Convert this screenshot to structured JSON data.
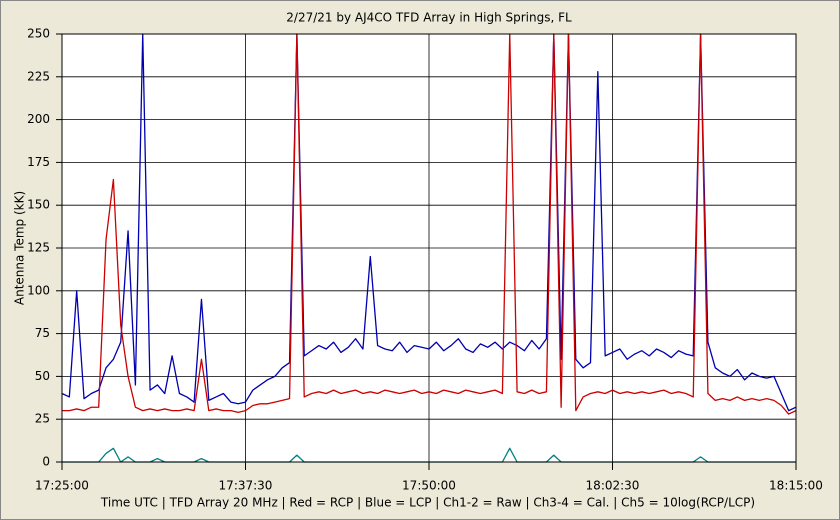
{
  "chart_data": {
    "type": "line",
    "title": "2/27/21  by  AJ4CO TFD Array  in  High Springs, FL",
    "y_label": "Antenna Temp (kK)",
    "x_label": "Time UTC | TFD Array 20 MHz | Red = RCP | Blue = LCP | Ch1-2 = Raw | Ch3-4 = Cal. | Ch5 = 10log(RCP/LCP)",
    "x": [
      "17:25:00",
      "17:25:30",
      "17:26:00",
      "17:26:30",
      "17:27:00",
      "17:27:30",
      "17:28:00",
      "17:28:30",
      "17:29:00",
      "17:29:30",
      "17:30:00",
      "17:30:30",
      "17:31:00",
      "17:31:30",
      "17:32:00",
      "17:32:30",
      "17:33:00",
      "17:33:30",
      "17:34:00",
      "17:34:30",
      "17:35:00",
      "17:35:30",
      "17:36:00",
      "17:36:30",
      "17:37:00",
      "17:37:30",
      "17:38:00",
      "17:38:30",
      "17:39:00",
      "17:39:30",
      "17:40:00",
      "17:40:30",
      "17:41:00",
      "17:41:30",
      "17:42:00",
      "17:42:30",
      "17:43:00",
      "17:43:30",
      "17:44:00",
      "17:44:30",
      "17:45:00",
      "17:45:30",
      "17:46:00",
      "17:46:30",
      "17:47:00",
      "17:47:30",
      "17:48:00",
      "17:48:30",
      "17:49:00",
      "17:49:30",
      "17:50:00",
      "17:50:30",
      "17:51:00",
      "17:51:30",
      "17:52:00",
      "17:52:30",
      "17:53:00",
      "17:53:30",
      "17:54:00",
      "17:54:30",
      "17:55:00",
      "17:55:30",
      "17:56:00",
      "17:56:30",
      "17:57:00",
      "17:57:30",
      "17:58:00",
      "17:58:30",
      "17:59:00",
      "17:59:30",
      "18:00:00",
      "18:00:30",
      "18:01:00",
      "18:01:30",
      "18:02:00",
      "18:02:30",
      "18:03:00",
      "18:03:30",
      "18:04:00",
      "18:04:30",
      "18:05:00",
      "18:05:30",
      "18:06:00",
      "18:06:30",
      "18:07:00",
      "18:07:30",
      "18:08:00",
      "18:08:30",
      "18:09:00",
      "18:09:30",
      "18:10:00",
      "18:10:30",
      "18:11:00",
      "18:11:30",
      "18:12:00",
      "18:12:30",
      "18:13:00",
      "18:13:30",
      "18:14:00",
      "18:14:30",
      "18:15:00"
    ],
    "series": [
      {
        "color": "#0000b0",
        "values": [
          40,
          38,
          100,
          37,
          40,
          42,
          55,
          60,
          70,
          135,
          45,
          250,
          42,
          45,
          40,
          62,
          40,
          38,
          35,
          95,
          36,
          38,
          40,
          35,
          34,
          35,
          42,
          45,
          48,
          50,
          55,
          58,
          250,
          62,
          65,
          68,
          66,
          70,
          64,
          67,
          72,
          66,
          120,
          68,
          66,
          65,
          70,
          64,
          68,
          67,
          66,
          70,
          65,
          68,
          72,
          66,
          64,
          69,
          67,
          70,
          66,
          70,
          68,
          65,
          71,
          66,
          72,
          250,
          60,
          250,
          60,
          55,
          58,
          228,
          62,
          64,
          66,
          60,
          63,
          65,
          62,
          66,
          64,
          61,
          65,
          63,
          62,
          250,
          70,
          55,
          52,
          50,
          54,
          48,
          52,
          50,
          49,
          50,
          40,
          30,
          32
        ]
      },
      {
        "color": "#cc0000",
        "values": [
          30,
          30,
          31,
          30,
          32,
          32,
          130,
          165,
          80,
          50,
          32,
          30,
          31,
          30,
          31,
          30,
          30,
          31,
          30,
          60,
          30,
          31,
          30,
          30,
          29,
          30,
          33,
          34,
          34,
          35,
          36,
          37,
          250,
          38,
          40,
          41,
          40,
          42,
          40,
          41,
          42,
          40,
          41,
          40,
          42,
          41,
          40,
          41,
          42,
          40,
          41,
          40,
          42,
          41,
          40,
          42,
          41,
          40,
          41,
          42,
          40,
          250,
          41,
          40,
          42,
          40,
          41,
          250,
          32,
          250,
          30,
          38,
          40,
          41,
          40,
          42,
          40,
          41,
          40,
          41,
          40,
          41,
          42,
          40,
          41,
          40,
          38,
          250,
          40,
          36,
          37,
          36,
          38,
          36,
          37,
          36,
          37,
          36,
          33,
          28,
          30
        ]
      },
      {
        "color": "#008080",
        "values": [
          0,
          0,
          0,
          0,
          0,
          0,
          5,
          8,
          0,
          3,
          0,
          0,
          0,
          2,
          0,
          0,
          0,
          0,
          0,
          2,
          0,
          0,
          0,
          0,
          0,
          0,
          0,
          0,
          0,
          0,
          0,
          0,
          4,
          0,
          0,
          0,
          0,
          0,
          0,
          0,
          0,
          0,
          0,
          0,
          0,
          0,
          0,
          0,
          0,
          0,
          0,
          0,
          0,
          0,
          0,
          0,
          0,
          0,
          0,
          0,
          0,
          8,
          0,
          0,
          0,
          0,
          0,
          4,
          0,
          0,
          0,
          0,
          0,
          0,
          0,
          0,
          0,
          0,
          0,
          0,
          0,
          0,
          0,
          0,
          0,
          0,
          0,
          3,
          0,
          0,
          0,
          0,
          0,
          0,
          0,
          0,
          0,
          0,
          0,
          0,
          0
        ]
      }
    ],
    "xlim": [
      "17:25:00",
      "18:15:00"
    ],
    "xticks": [
      "17:25:00",
      "17:37:30",
      "17:50:00",
      "18:02:30",
      "18:15:00"
    ],
    "ylim": [
      0,
      250
    ],
    "yticks": [
      0,
      25,
      50,
      75,
      100,
      125,
      150,
      175,
      200,
      225,
      250
    ],
    "grid": true
  }
}
